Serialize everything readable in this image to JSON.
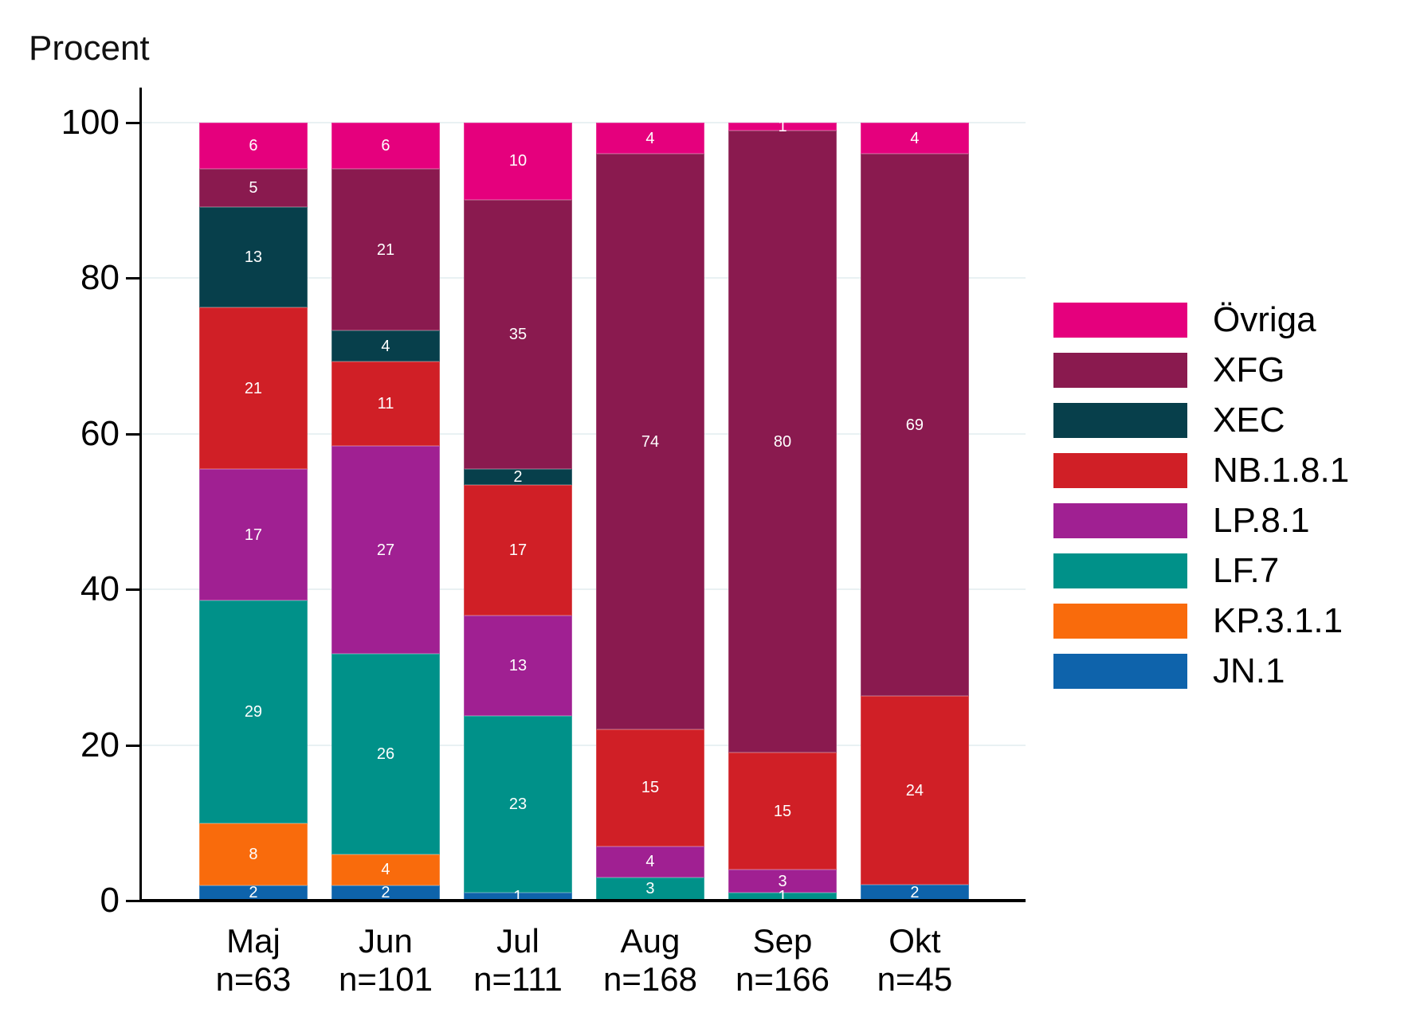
{
  "chart_data": {
    "type": "bar",
    "stacked": true,
    "ylabel": "Procent",
    "ylim": [
      0,
      100
    ],
    "y_ticks": [
      0,
      20,
      40,
      60,
      80,
      100
    ],
    "grid": true,
    "legend_position": "right",
    "categories": [
      "Maj",
      "Jun",
      "Jul",
      "Aug",
      "Sep",
      "Okt"
    ],
    "category_sublabels": [
      "n=63",
      "n=101",
      "n=111",
      "n=168",
      "n=166",
      "n=45"
    ],
    "series": [
      {
        "name": "JN.1",
        "color": "#0e63ab",
        "values": [
          2,
          2,
          1,
          0,
          0,
          2
        ]
      },
      {
        "name": "KP.3.1.1",
        "color": "#f96b0c",
        "values": [
          8,
          4,
          0,
          0,
          0,
          0
        ]
      },
      {
        "name": "LF.7",
        "color": "#009189",
        "values": [
          29,
          26,
          23,
          3,
          1,
          0
        ]
      },
      {
        "name": "LP.8.1",
        "color": "#a02092",
        "values": [
          17,
          27,
          13,
          4,
          3,
          0
        ]
      },
      {
        "name": "NB.1.8.1",
        "color": "#d01f26",
        "values": [
          21,
          11,
          17,
          15,
          15,
          24
        ]
      },
      {
        "name": "XEC",
        "color": "#073f4b",
        "values": [
          13,
          4,
          2,
          0,
          0,
          0
        ]
      },
      {
        "name": "XFG",
        "color": "#8a1a4f",
        "values": [
          5,
          21,
          35,
          74,
          80,
          69
        ]
      },
      {
        "name": "Övriga",
        "color": "#e5007d",
        "values": [
          6,
          6,
          10,
          4,
          1,
          4
        ]
      }
    ],
    "legend_entries": [
      "Övriga",
      "XFG",
      "XEC",
      "NB.1.8.1",
      "LP.8.1",
      "LF.7",
      "KP.3.1.1",
      "JN.1"
    ],
    "bar_value_label_color": "#ffffff",
    "gridline_color": "#e9f1f3",
    "axis_color": "#000000"
  }
}
